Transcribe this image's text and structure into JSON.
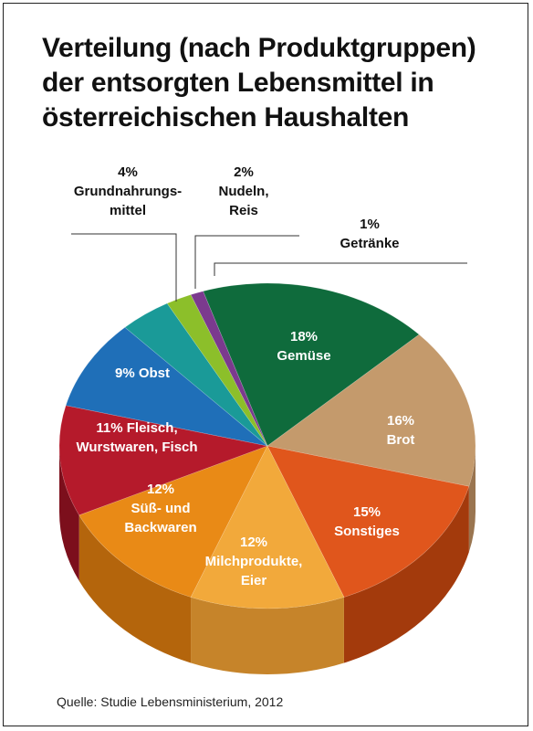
{
  "chart_data": {
    "type": "pie",
    "title_lines": [
      "Verteilung (nach Produktgruppen)",
      "der entsorgten Lebensmittel in",
      "österreichischen Haushalten"
    ],
    "source": "Quelle: Studie Lebensministerium, 2012",
    "slices": [
      {
        "key": "gemuese",
        "value": 18,
        "label_lines": [
          "18%",
          "Gemüse"
        ],
        "color": "#0f6b3c",
        "side": "#0a4a29"
      },
      {
        "key": "brot",
        "value": 16,
        "label_lines": [
          "16%",
          "Brot"
        ],
        "color": "#c49a6c",
        "side": "#9a7550"
      },
      {
        "key": "sonstiges",
        "value": 15,
        "label_lines": [
          "15%",
          "Sonstiges"
        ],
        "color": "#e0561c",
        "side": "#a33a0c"
      },
      {
        "key": "milchprodukte",
        "value": 12,
        "label_lines": [
          "12%",
          "Milchprodukte,",
          "Eier"
        ],
        "color": "#f2a93b",
        "side": "#c6842a"
      },
      {
        "key": "suesswaren",
        "value": 12,
        "label_lines": [
          "12%",
          "Süß- und",
          "Backwaren"
        ],
        "color": "#e98a16",
        "side": "#b4650c"
      },
      {
        "key": "fleisch",
        "value": 11,
        "label_lines": [
          "11% Fleisch,",
          "Wurstwaren, Fisch"
        ],
        "color": "#b51a2b",
        "side": "#7c0f1c"
      },
      {
        "key": "obst",
        "value": 9,
        "label_lines": [
          "9% Obst"
        ],
        "color": "#1f6fb8",
        "side": "#164f85"
      },
      {
        "key": "grundnahrungsmittel",
        "value": 4,
        "label_lines": [
          "4%",
          "Grundnahrungs-",
          "mittel"
        ],
        "color": "#1a9a98",
        "side": "#116c6b"
      },
      {
        "key": "nudeln",
        "value": 2,
        "label_lines": [
          "2%",
          "Nudeln,",
          "Reis"
        ],
        "color": "#8cbf2a",
        "side": "#5f8a17"
      },
      {
        "key": "getraenke",
        "value": 1,
        "label_lines": [
          "1%",
          "Getränke"
        ],
        "color": "#7b3a8e",
        "side": "#56276a"
      }
    ]
  }
}
